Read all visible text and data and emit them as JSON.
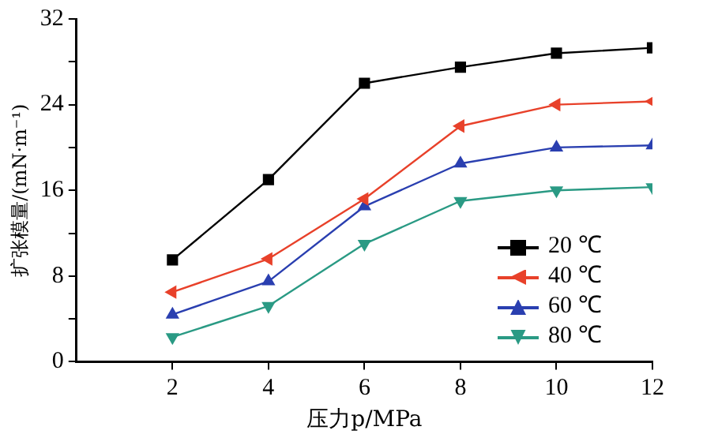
{
  "chart_data": {
    "type": "line",
    "xlabel": "压力p/MPa",
    "ylabel": "扩张模量/(mN·m⁻¹)",
    "x": [
      2,
      4,
      6,
      8,
      10,
      12
    ],
    "series": [
      {
        "name": "20 ℃",
        "color": "#000000",
        "marker": "square",
        "values": [
          9.5,
          17,
          26,
          27.5,
          28.8,
          29.3
        ]
      },
      {
        "name": "40 ℃",
        "color": "#e8412a",
        "marker": "triangle-left",
        "values": [
          6.5,
          9.6,
          15.2,
          22,
          24,
          24.3
        ]
      },
      {
        "name": "60 ℃",
        "color": "#2a3fb0",
        "marker": "triangle",
        "values": [
          4.4,
          7.5,
          14.5,
          18.5,
          20,
          20.2
        ]
      },
      {
        "name": "80 ℃",
        "color": "#2a9a84",
        "marker": "triangle-down",
        "values": [
          2.3,
          5.2,
          11,
          15,
          16,
          16.3
        ]
      }
    ],
    "xlim": [
      0,
      12
    ],
    "xticks": [
      2,
      4,
      6,
      8,
      10,
      12
    ],
    "ylim": [
      0,
      32
    ],
    "yticks": [
      0,
      {
        "value": 4,
        "label": null
      },
      8,
      {
        "value": 12,
        "label": null
      },
      16,
      {
        "value": 20,
        "label": null
      },
      24,
      {
        "value": 28,
        "label": null
      },
      32
    ],
    "grid": false,
    "legend": "bottom right",
    "line_style": "solid"
  }
}
